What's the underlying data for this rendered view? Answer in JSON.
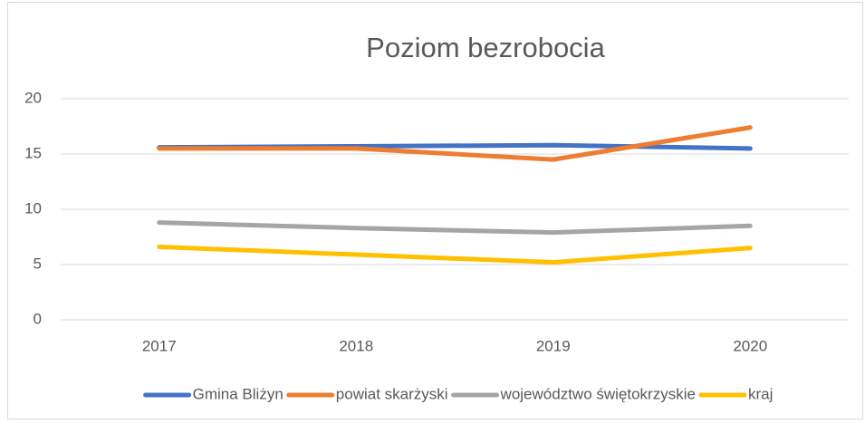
{
  "chart_data": {
    "type": "line",
    "title": "Poziom bezrobocia",
    "categories": [
      "2017",
      "2018",
      "2019",
      "2020"
    ],
    "series": [
      {
        "name": "Gmina Bliżyn",
        "color": "#4472c4",
        "values": [
          15.6,
          15.7,
          15.8,
          15.5
        ]
      },
      {
        "name": "powiat skarżyski",
        "color": "#ed7d31",
        "values": [
          15.5,
          15.5,
          14.5,
          17.4
        ]
      },
      {
        "name": "województwo świętokrzyskie",
        "color": "#a5a5a5",
        "values": [
          8.8,
          8.3,
          7.9,
          8.5
        ]
      },
      {
        "name": "kraj",
        "color": "#ffc000",
        "values": [
          6.6,
          5.9,
          5.2,
          6.5
        ]
      }
    ],
    "ylim": [
      0,
      20
    ],
    "yticks": [
      0,
      5,
      10,
      15,
      20
    ],
    "grid": true,
    "legend": "bottom"
  }
}
